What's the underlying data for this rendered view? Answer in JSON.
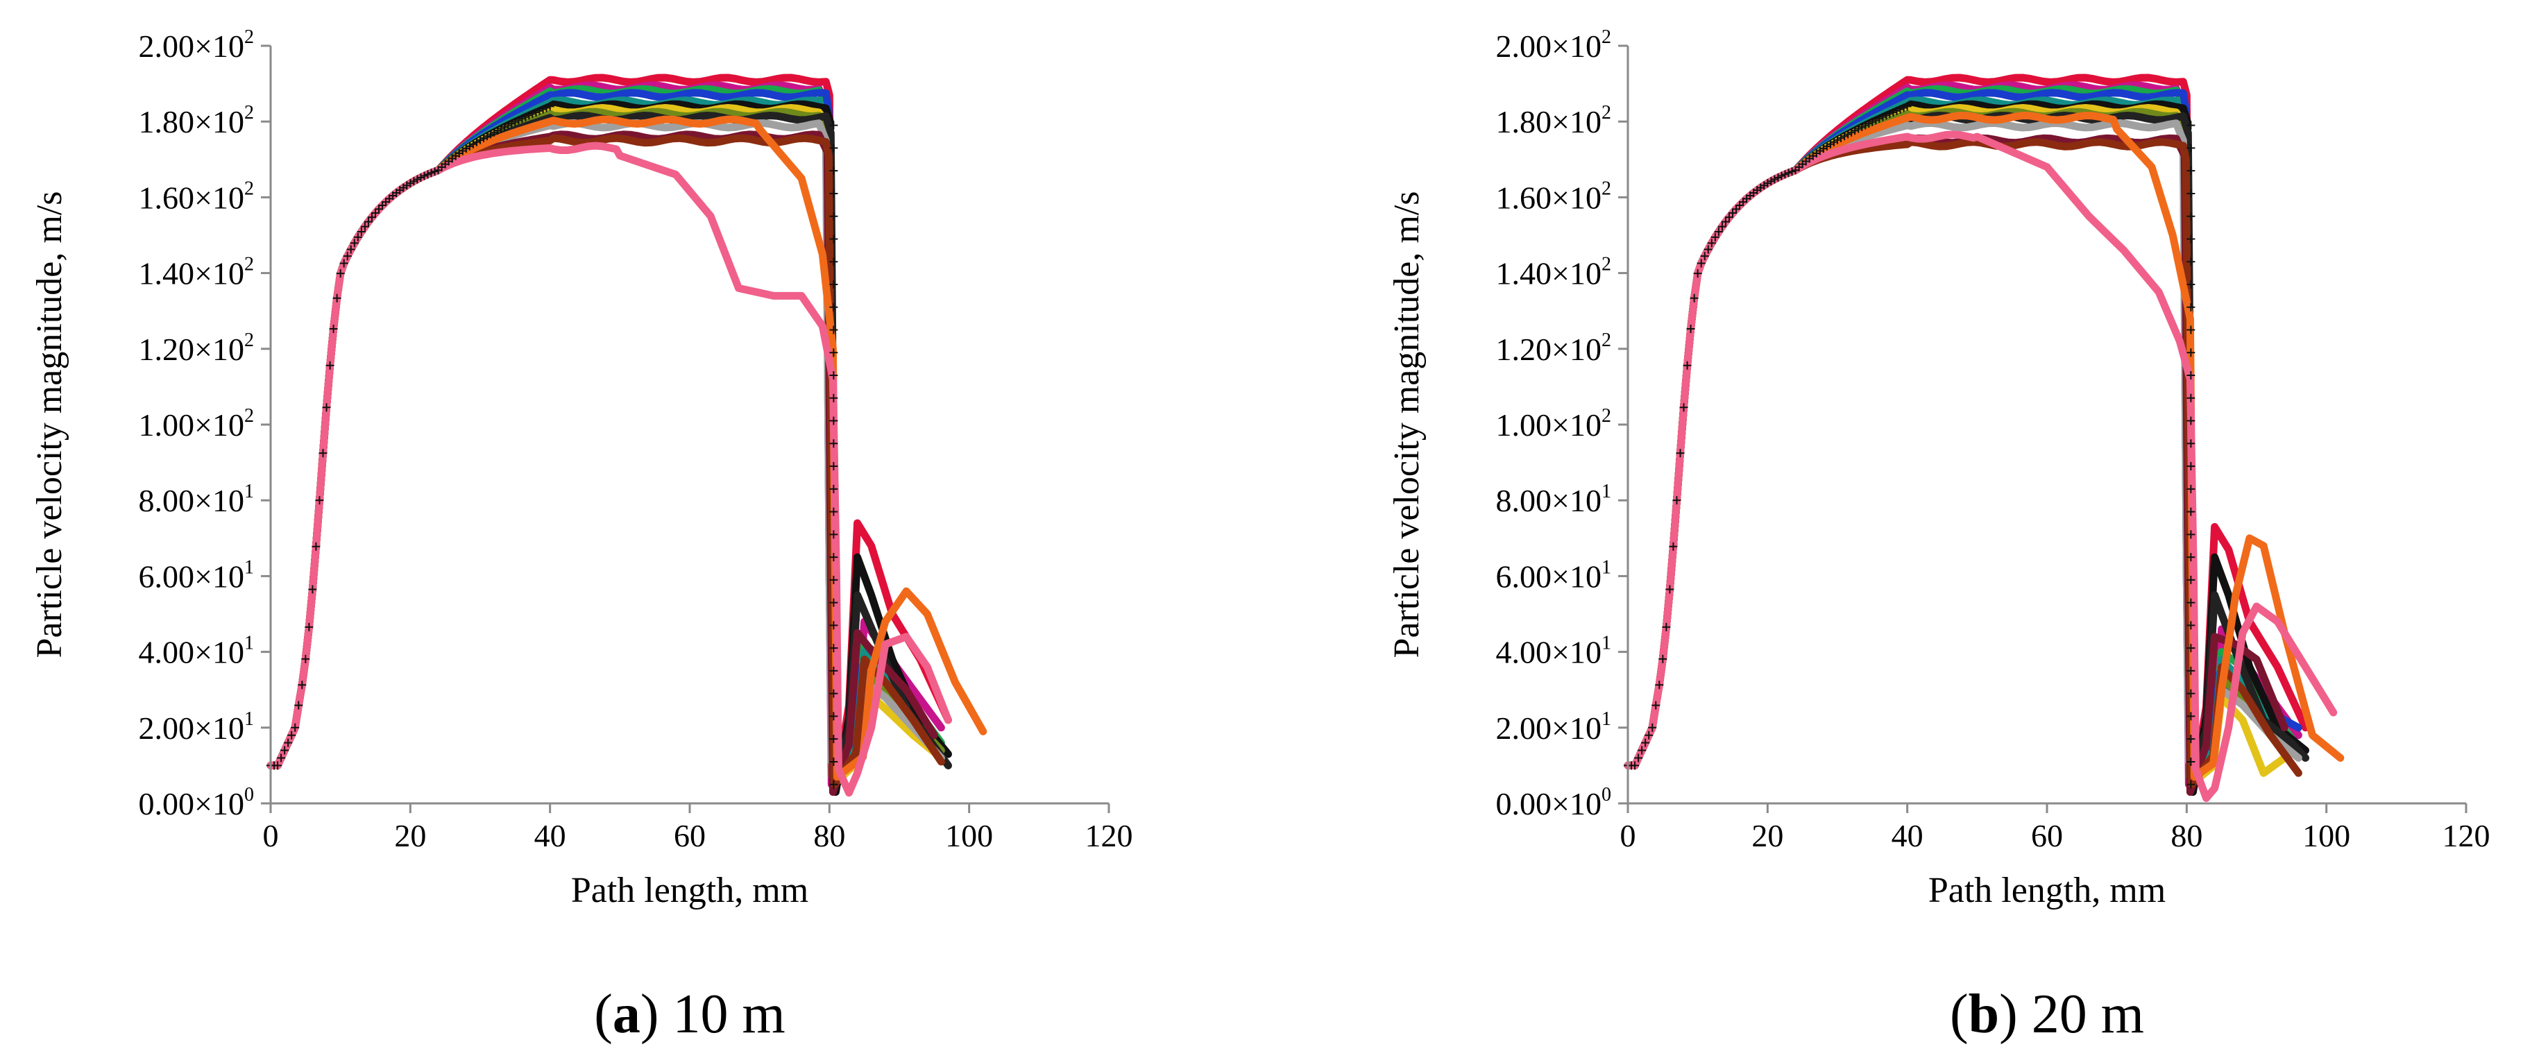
{
  "chart_data": [
    {
      "panel_id": "a",
      "type": "line",
      "caption_letter": "a",
      "caption_text": " 10 m",
      "xlabel": "Path length, mm",
      "ylabel": "Particle velocity magnitude, m/s",
      "xlim": [
        0,
        120
      ],
      "ylim": [
        0,
        200
      ],
      "xticks": [
        {
          "value": 0,
          "label": "0"
        },
        {
          "value": 20,
          "label": "20"
        },
        {
          "value": 40,
          "label": "40"
        },
        {
          "value": 60,
          "label": "60"
        },
        {
          "value": 80,
          "label": "80"
        },
        {
          "value": 100,
          "label": "100"
        },
        {
          "value": 120,
          "label": "120"
        }
      ],
      "yticks": [
        {
          "value": 0,
          "mantissa": "0.00×10",
          "exp": "0"
        },
        {
          "value": 20,
          "mantissa": "2.00×10",
          "exp": "1"
        },
        {
          "value": 40,
          "mantissa": "4.00×10",
          "exp": "1"
        },
        {
          "value": 60,
          "mantissa": "6.00×10",
          "exp": "1"
        },
        {
          "value": 80,
          "mantissa": "8.00×10",
          "exp": "1"
        },
        {
          "value": 100,
          "mantissa": "1.00×10",
          "exp": "2"
        },
        {
          "value": 120,
          "mantissa": "1.20×10",
          "exp": "2"
        },
        {
          "value": 140,
          "mantissa": "1.40×10",
          "exp": "2"
        },
        {
          "value": 160,
          "mantissa": "1.60×10",
          "exp": "2"
        },
        {
          "value": 180,
          "mantissa": "1.80×10",
          "exp": "2"
        },
        {
          "value": 200,
          "mantissa": "2.00×10",
          "exp": "2"
        }
      ],
      "series": [
        {
          "name": "crimson",
          "color": "#e0103a",
          "plateau": 191,
          "x_drop": 80.5,
          "post": [
            [
              84,
              74
            ],
            [
              86,
              68
            ],
            [
              89,
              50
            ],
            [
              93,
              38
            ],
            [
              97,
              22
            ]
          ]
        },
        {
          "name": "magenta",
          "color": "#c8148c",
          "plateau": 189,
          "x_drop": 80.0,
          "post": [
            [
              85,
              48
            ],
            [
              88,
              40
            ],
            [
              92,
              30
            ],
            [
              96,
              20
            ]
          ]
        },
        {
          "name": "green",
          "color": "#1aa64a",
          "plateau": 188,
          "x_drop": 80.2,
          "post": [
            [
              85,
              42
            ],
            [
              88,
              38
            ],
            [
              92,
              26
            ],
            [
              96,
              16
            ]
          ]
        },
        {
          "name": "blue",
          "color": "#1a3ccc",
          "plateau": 187,
          "x_drop": 80.4,
          "post": [
            [
              84,
              36
            ],
            [
              87,
              30
            ],
            [
              92,
              22
            ],
            [
              96,
              14
            ]
          ]
        },
        {
          "name": "teal",
          "color": "#138f88",
          "plateau": 185,
          "x_drop": 80.0,
          "post": [
            [
              85,
              40
            ],
            [
              88,
              34
            ],
            [
              92,
              24
            ],
            [
              96,
              15
            ]
          ]
        },
        {
          "name": "black1",
          "color": "#111111",
          "plateau": 184,
          "x_drop": 80.6,
          "post": [
            [
              84,
              65
            ],
            [
              86,
              55
            ],
            [
              89,
              38
            ],
            [
              93,
              22
            ],
            [
              97,
              13
            ]
          ]
        },
        {
          "name": "yellow",
          "color": "#e3c21a",
          "plateau": 183,
          "x_drop": 80.3,
          "post": [
            [
              85,
              30
            ],
            [
              88,
              25
            ],
            [
              92,
              18
            ],
            [
              96,
              12
            ]
          ]
        },
        {
          "name": "olive",
          "color": "#6f8a1a",
          "plateau": 182,
          "x_drop": 80.1,
          "post": [
            [
              85,
              35
            ],
            [
              88,
              30
            ],
            [
              92,
              22
            ],
            [
              96,
              14
            ]
          ]
        },
        {
          "name": "black2",
          "color": "#222222",
          "plateau": 181,
          "x_drop": 80.7,
          "post": [
            [
              84,
              55
            ],
            [
              87,
              42
            ],
            [
              91,
              25
            ],
            [
              95,
              15
            ],
            [
              97,
              10
            ]
          ]
        },
        {
          "name": "gray",
          "color": "#a0a0a0",
          "plateau": 179,
          "x_drop": 80.0,
          "post": [
            [
              85,
              32
            ],
            [
              88,
              28
            ],
            [
              92,
              20
            ],
            [
              96,
              12
            ]
          ]
        },
        {
          "name": "maroon",
          "color": "#7a1530",
          "plateau": 176,
          "x_drop": 80.2,
          "post": [
            [
              84,
              45
            ],
            [
              87,
              38
            ],
            [
              91,
              30
            ],
            [
              95,
              18
            ]
          ]
        },
        {
          "name": "brown",
          "color": "#8b2c10",
          "plateau": 175,
          "x_drop": 80.4,
          "post": [
            [
              85,
              38
            ],
            [
              88,
              32
            ],
            [
              92,
              22
            ],
            [
              96,
              11
            ]
          ]
        },
        {
          "name": "orange",
          "color": "#f06a1a",
          "plateau": 180,
          "x_drop": 80.8,
          "post": [
            [
              86,
              35
            ],
            [
              88,
              48
            ],
            [
              91,
              56
            ],
            [
              94,
              50
            ],
            [
              98,
              32
            ],
            [
              102,
              19
            ]
          ],
          "pre_drop": [
            [
              70,
              178
            ],
            [
              76,
              165
            ],
            [
              79,
              145
            ],
            [
              80.5,
              120
            ]
          ]
        },
        {
          "name": "pink",
          "color": "#f0608a",
          "plateau": 173,
          "x_drop": 81.0,
          "post": [
            [
              84,
              8
            ],
            [
              86,
              20
            ],
            [
              88,
              42
            ],
            [
              91,
              44
            ],
            [
              94,
              36
            ],
            [
              97,
              22
            ]
          ],
          "pre_drop": [
            [
              50,
              171
            ],
            [
              58,
              166
            ],
            [
              63,
              155
            ],
            [
              67,
              136
            ],
            [
              72,
              134
            ],
            [
              76,
              134
            ],
            [
              79,
              126
            ],
            [
              80.5,
              112
            ]
          ]
        }
      ]
    },
    {
      "panel_id": "b",
      "type": "line",
      "caption_letter": "b",
      "caption_text": " 20 m",
      "xlabel": "Path length, mm",
      "ylabel": "Particle velocity magnitude, m/s",
      "xlim": [
        0,
        120
      ],
      "ylim": [
        0,
        200
      ],
      "xticks": [
        {
          "value": 0,
          "label": "0"
        },
        {
          "value": 20,
          "label": "20"
        },
        {
          "value": 40,
          "label": "40"
        },
        {
          "value": 60,
          "label": "60"
        },
        {
          "value": 80,
          "label": "80"
        },
        {
          "value": 100,
          "label": "100"
        },
        {
          "value": 120,
          "label": "120"
        }
      ],
      "yticks": [
        {
          "value": 0,
          "mantissa": "0.00×10",
          "exp": "0"
        },
        {
          "value": 20,
          "mantissa": "2.00×10",
          "exp": "1"
        },
        {
          "value": 40,
          "mantissa": "4.00×10",
          "exp": "1"
        },
        {
          "value": 60,
          "mantissa": "6.00×10",
          "exp": "1"
        },
        {
          "value": 80,
          "mantissa": "8.00×10",
          "exp": "1"
        },
        {
          "value": 100,
          "mantissa": "1.00×10",
          "exp": "2"
        },
        {
          "value": 120,
          "mantissa": "1.20×10",
          "exp": "2"
        },
        {
          "value": 140,
          "mantissa": "1.40×10",
          "exp": "2"
        },
        {
          "value": 160,
          "mantissa": "1.60×10",
          "exp": "2"
        },
        {
          "value": 180,
          "mantissa": "1.80×10",
          "exp": "2"
        },
        {
          "value": 200,
          "mantissa": "2.00×10",
          "exp": "2"
        }
      ],
      "series": [
        {
          "name": "crimson",
          "color": "#e0103a",
          "plateau": 191,
          "x_drop": 80.5,
          "post": [
            [
              84,
              73
            ],
            [
              86,
              67
            ],
            [
              89,
              48
            ],
            [
              93,
              36
            ],
            [
              97,
              20
            ]
          ]
        },
        {
          "name": "magenta",
          "color": "#c8148c",
          "plateau": 189,
          "x_drop": 80.0,
          "post": [
            [
              85,
              46
            ],
            [
              88,
              38
            ],
            [
              92,
              28
            ],
            [
              96,
              18
            ]
          ]
        },
        {
          "name": "green",
          "color": "#1aa64a",
          "plateau": 188,
          "x_drop": 80.2,
          "post": [
            [
              85,
              40
            ],
            [
              88,
              36
            ],
            [
              92,
              24
            ],
            [
              96,
              15
            ]
          ]
        },
        {
          "name": "blue",
          "color": "#1a3ccc",
          "plateau": 187,
          "x_drop": 80.4,
          "post": [
            [
              84,
              34
            ],
            [
              87,
              28
            ],
            [
              92,
              24
            ],
            [
              96,
              20
            ]
          ]
        },
        {
          "name": "teal",
          "color": "#138f88",
          "plateau": 185,
          "x_drop": 80.0,
          "post": [
            [
              85,
              38
            ],
            [
              88,
              32
            ],
            [
              92,
              22
            ],
            [
              96,
              14
            ]
          ]
        },
        {
          "name": "black1",
          "color": "#111111",
          "plateau": 184,
          "x_drop": 80.6,
          "post": [
            [
              84,
              65
            ],
            [
              86,
              55
            ],
            [
              89,
              36
            ],
            [
              93,
              20
            ],
            [
              97,
              14
            ]
          ]
        },
        {
          "name": "yellow",
          "color": "#e3c21a",
          "plateau": 183,
          "x_drop": 80.3,
          "post": [
            [
              85,
              28
            ],
            [
              88,
              22
            ],
            [
              91,
              8
            ],
            [
              94,
              12
            ]
          ]
        },
        {
          "name": "olive",
          "color": "#6f8a1a",
          "plateau": 182,
          "x_drop": 80.1,
          "post": [
            [
              85,
              33
            ],
            [
              88,
              28
            ],
            [
              92,
              20
            ],
            [
              96,
              13
            ]
          ]
        },
        {
          "name": "black2",
          "color": "#222222",
          "plateau": 181,
          "x_drop": 80.7,
          "post": [
            [
              84,
              55
            ],
            [
              87,
              40
            ],
            [
              91,
              22
            ],
            [
              95,
              16
            ],
            [
              97,
              12
            ]
          ]
        },
        {
          "name": "gray",
          "color": "#a0a0a0",
          "plateau": 179,
          "x_drop": 80.0,
          "post": [
            [
              85,
              30
            ],
            [
              88,
              26
            ],
            [
              92,
              18
            ],
            [
              96,
              12
            ]
          ]
        },
        {
          "name": "maroon",
          "color": "#7a1530",
          "plateau": 175,
          "x_drop": 80.2,
          "post": [
            [
              84,
              44
            ],
            [
              87,
              42
            ],
            [
              90,
              38
            ],
            [
              94,
              20
            ]
          ]
        },
        {
          "name": "brown",
          "color": "#8b2c10",
          "plateau": 174,
          "x_drop": 80.4,
          "post": [
            [
              85,
              36
            ],
            [
              88,
              30
            ],
            [
              92,
              18
            ],
            [
              96,
              8
            ]
          ]
        },
        {
          "name": "orange",
          "color": "#f06a1a",
          "plateau": 181,
          "x_drop": 80.8,
          "post": [
            [
              85,
              30
            ],
            [
              87,
              55
            ],
            [
              89,
              70
            ],
            [
              91,
              68
            ],
            [
              94,
              45
            ],
            [
              98,
              18
            ],
            [
              102,
              12
            ]
          ],
          "pre_drop": [
            [
              70,
              178
            ],
            [
              75,
              168
            ],
            [
              78,
              150
            ],
            [
              80.5,
              128
            ]
          ]
        },
        {
          "name": "pink",
          "color": "#f0608a",
          "plateau": 176,
          "x_drop": 81.0,
          "post": [
            [
              84,
              4
            ],
            [
              86,
              20
            ],
            [
              88,
              45
            ],
            [
              90,
              52
            ],
            [
              93,
              48
            ],
            [
              97,
              36
            ],
            [
              101,
              24
            ]
          ],
          "pre_drop": [
            [
              50,
              176
            ],
            [
              60,
              168
            ],
            [
              66,
              155
            ],
            [
              71,
              146
            ],
            [
              76,
              135
            ],
            [
              79,
              122
            ],
            [
              80.5,
              112
            ]
          ]
        }
      ]
    }
  ]
}
